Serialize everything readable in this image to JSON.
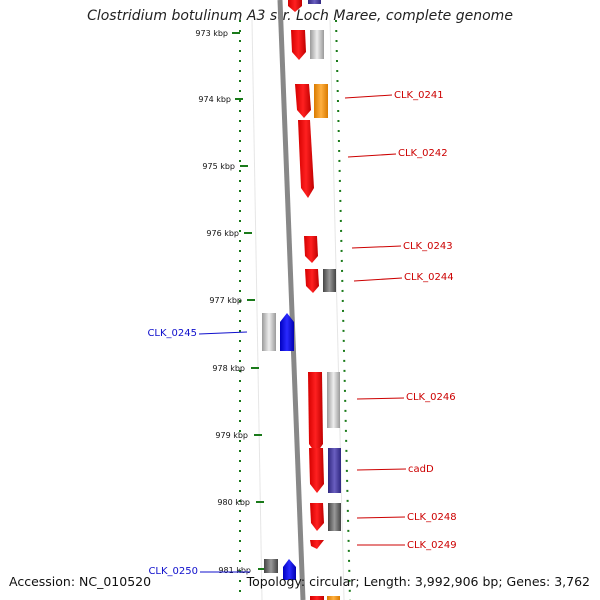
{
  "title": "Clostridium botulinum A3 str. Loch Maree, complete genome",
  "footer": {
    "accession": "Accession: NC_010520",
    "summary": "Topology: circular; Length: 3,992,906 bp; Genes: 3,762"
  },
  "kbp_labels": [
    "973 kbp",
    "974 kbp",
    "975 kbp",
    "976 kbp",
    "977 kbp",
    "978 kbp",
    "979 kbp",
    "980 kbp",
    "981 kbp"
  ],
  "gene_labels": [
    {
      "text": "CLK_0241",
      "color": "#cc0000"
    },
    {
      "text": "CLK_0242",
      "color": "#cc0000"
    },
    {
      "text": "CLK_0243",
      "color": "#cc0000"
    },
    {
      "text": "CLK_0244",
      "color": "#cc0000"
    },
    {
      "text": "CLK_0245",
      "color": "#1010cc"
    },
    {
      "text": "CLK_0246",
      "color": "#cc0000"
    },
    {
      "text": "cadD",
      "color": "#cc0000"
    },
    {
      "text": "CLK_0248",
      "color": "#cc0000"
    },
    {
      "text": "CLK_0249",
      "color": "#cc0000"
    },
    {
      "text": "CLK_0250",
      "color": "#1010cc"
    }
  ],
  "colors": {
    "cds": "#ff0000",
    "cog_orange": "#ff9900",
    "cog_purple": "#4a3f9a",
    "cog_grey": "#bdbdbd",
    "cog_dark": "#666666",
    "minus_strand": "#0000ff",
    "backbone": "#888888",
    "tick": "#1a7a1a"
  }
}
